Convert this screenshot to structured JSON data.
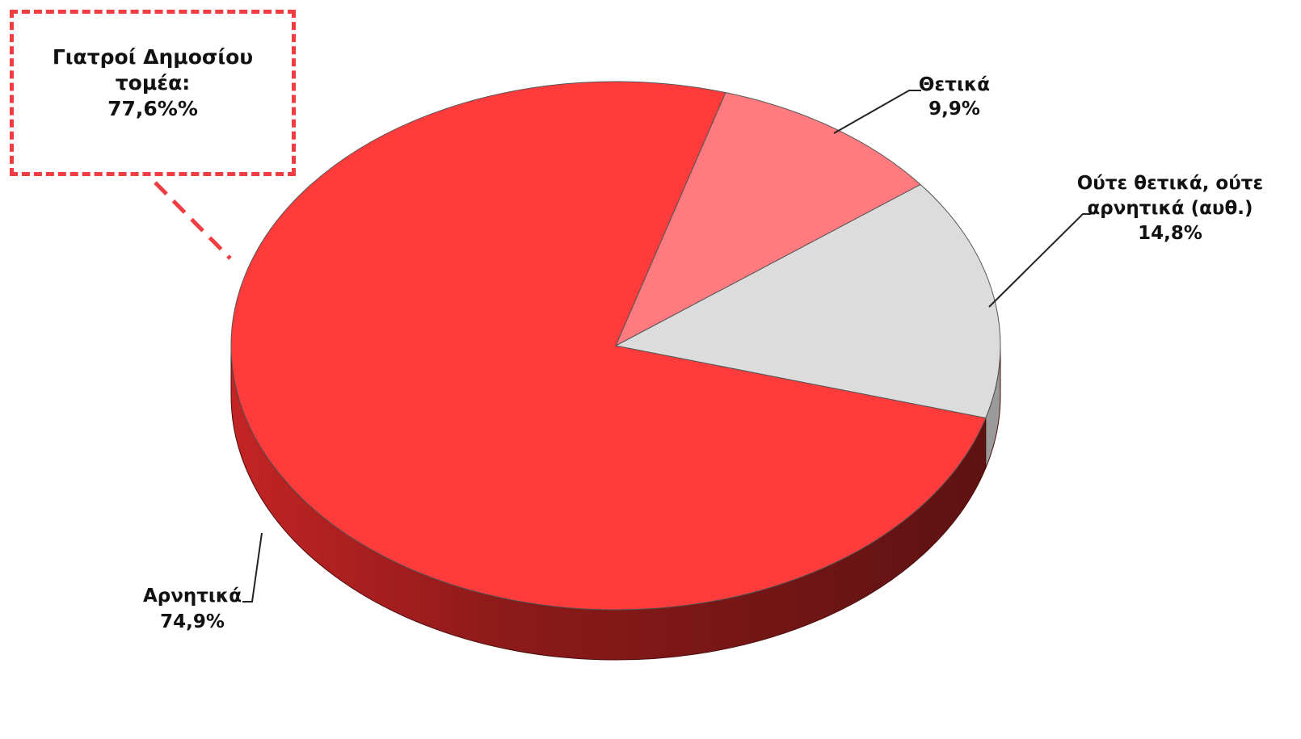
{
  "chart_data": {
    "type": "pie",
    "style": "3d",
    "slices": [
      {
        "name": "Αρνητικά",
        "value": 74.9,
        "label": "74,9%",
        "color": "#ff3b3b",
        "side_color": "#a01c1c"
      },
      {
        "name": "Θετικά",
        "value": 9.9,
        "label": "9,9%",
        "color": "#ff7b80",
        "side_color": "#b05055"
      },
      {
        "name_lines": [
          "Ούτε θετικά, ούτε",
          "αρνητικά (αυθ.)"
        ],
        "value": 14.8,
        "label": "14,8%",
        "color": "#dcdcdc",
        "side_color": "#9a9a9a"
      }
    ],
    "callout": {
      "lines": [
        "Γιατροί Δημοσίου",
        "τομέα:",
        "77,6%%"
      ],
      "border_color": "#ef3d42"
    }
  }
}
